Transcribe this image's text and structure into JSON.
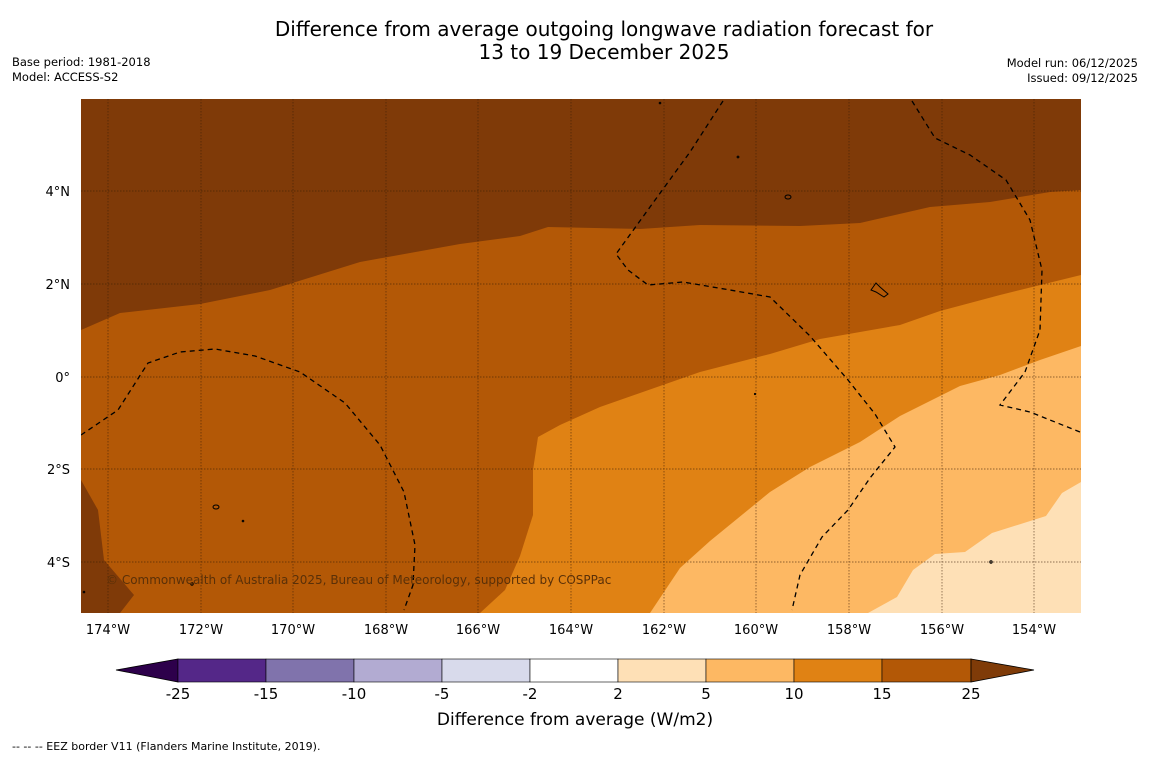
{
  "title": {
    "line1": "Difference from average outgoing longwave radiation forecast for",
    "line2": "13 to 19 December 2025"
  },
  "meta": {
    "base_period": "Base period: 1981-2018",
    "model": "Model: ACCESS-S2",
    "model_run": "Model run: 06/12/2025",
    "issued": "Issued: 09/12/2025"
  },
  "map": {
    "lat_labels": [
      "4°N",
      "2°N",
      "0°",
      "2°S",
      "4°S"
    ],
    "lon_labels": [
      "174°W",
      "172°W",
      "170°W",
      "168°W",
      "166°W",
      "164°W",
      "162°W",
      "160°W",
      "158°W",
      "156°W",
      "154°W"
    ],
    "copyright": "© Commonwealth of Australia 2025, Bureau of Meteorology, supported by COSPPac",
    "colors": {
      "over_25": "#7f3a08",
      "c15_25": "#b35806",
      "c10_15": "#e08214",
      "c5_10": "#fdb863",
      "c2_5": "#fee0b6"
    }
  },
  "colorbar": {
    "ticks": [
      "-25",
      "-15",
      "-10",
      "-5",
      "-2",
      "2",
      "5",
      "10",
      "15",
      "25"
    ],
    "colors": [
      "#2d004b",
      "#542788",
      "#8073ac",
      "#b2abd2",
      "#d8daeb",
      "#ffffff",
      "#fee0b6",
      "#fdb863",
      "#e08214",
      "#b35806",
      "#7f3b08"
    ],
    "label": "Difference from average (W/m2)"
  },
  "footnote": "--  --  -- EEZ border V11 (Flanders Marine Institute, 2019)."
}
